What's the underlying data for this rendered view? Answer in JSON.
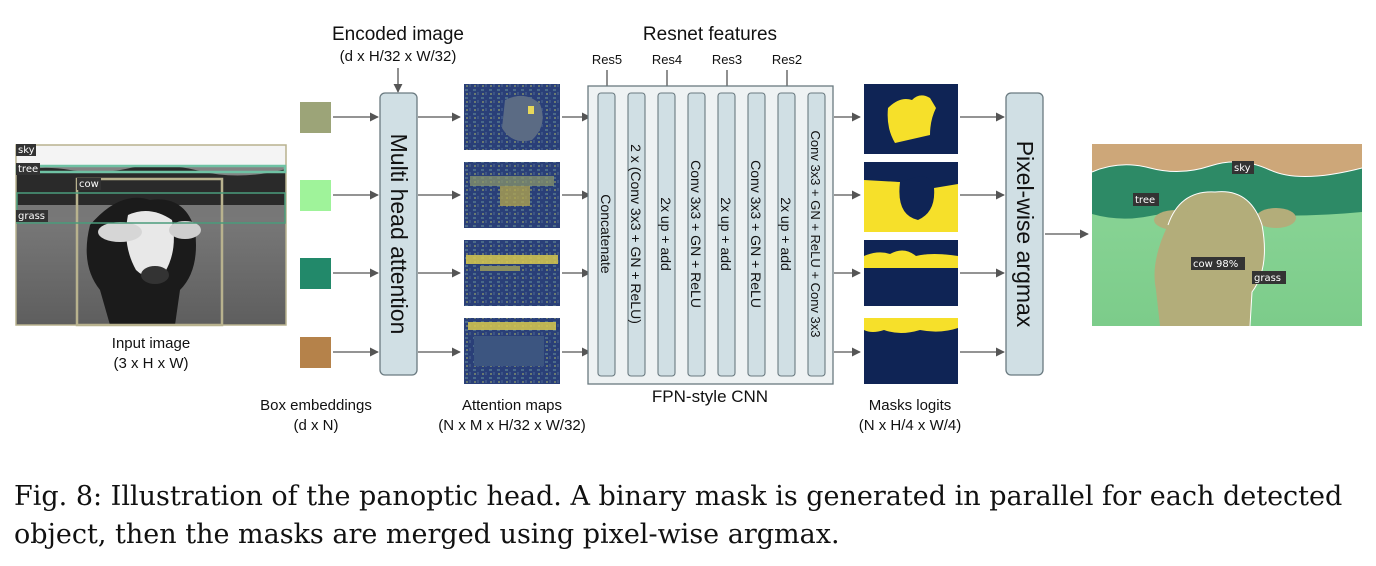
{
  "labels": {
    "encoded_title": "Encoded image",
    "encoded_dims": "(d x H/32 x W/32)",
    "resnet_title": "Resnet features",
    "res5": "Res5",
    "res4": "Res4",
    "res3": "Res3",
    "res2": "Res2",
    "input_title": "Input image",
    "input_dims": "(3 x H x W)",
    "box_title": "Box embeddings",
    "box_dims": "(d x N)",
    "attn_title": "Attention maps",
    "attn_dims": "(N x M x H/32 x W/32)",
    "fpn_title": "FPN-style CNN",
    "masks_title": "Masks logits",
    "masks_dims": "(N x H/4 x W/4)"
  },
  "blocks": {
    "mha": "Multi head attention",
    "argmax": "Pixel-wise argmax",
    "fpn_layers": [
      "Concatenate",
      "2 x (Conv 3x3 + GN + ReLU)",
      "2x up + add",
      "Conv 3x3 + GN + ReLU",
      "2x up + add",
      "Conv 3x3 + GN + ReLU",
      "2x up + add",
      "Conv 3x3 + GN + ReLU + Conv 3x3"
    ]
  },
  "box_embedding_colors": [
    "#9ca478",
    "#9ff39a",
    "#22896a",
    "#b5824a"
  ],
  "input_tags": [
    "sky",
    "tree",
    "cow",
    "grass"
  ],
  "output_tags": [
    "sky",
    "tree",
    "cow 98%",
    "grass"
  ],
  "caption": "Fig. 8: Illustration of the panoptic head. A binary mask is generated in parallel for each detected object, then the masks are merged using pixel-wise argmax."
}
